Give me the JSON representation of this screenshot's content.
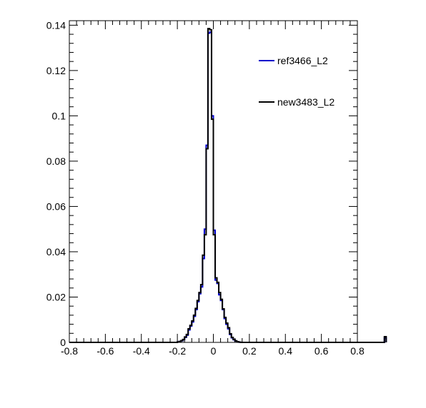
{
  "chart_data": {
    "type": "histogram",
    "title": "",
    "xlabel": "",
    "ylabel": "",
    "xlim": [
      -0.8,
      0.8
    ],
    "ylim": [
      0,
      0.142
    ],
    "x_ticks": [
      "-0.8",
      "-0.6",
      "-0.4",
      "-0.2",
      "0",
      "0.2",
      "0.4",
      "0.6",
      "0.8"
    ],
    "y_ticks": [
      "0",
      "0.02",
      "0.04",
      "0.06",
      "0.08",
      "0.1",
      "0.12",
      "0.14"
    ],
    "bin_width": 0.01,
    "bin_edges_start": -0.8,
    "legend_position": "top-right",
    "grid": false,
    "series": [
      {
        "name": "ref3466_L2",
        "color": "#0000cc",
        "values": [
          0,
          0,
          0,
          0,
          0,
          0,
          0,
          0,
          0,
          0,
          0,
          0,
          0,
          0,
          0,
          0,
          0,
          0,
          0,
          0,
          0,
          0,
          0,
          0,
          0,
          0,
          0,
          0,
          0,
          0,
          0,
          0,
          0,
          0,
          0,
          0,
          0,
          0,
          0,
          0,
          0,
          0,
          0,
          0,
          0,
          0,
          0,
          0,
          0,
          0,
          0,
          0,
          0,
          0,
          0,
          0,
          0,
          0,
          0,
          0,
          0.0002,
          0.0004,
          0.0007,
          0.0012,
          0.0022,
          0.0032,
          0.0055,
          0.0072,
          0.009,
          0.0115,
          0.0145,
          0.018,
          0.0215,
          0.0245,
          0.037,
          0.05,
          0.087,
          0.1365,
          0.137,
          0.1,
          0.0495,
          0.0275,
          0.026,
          0.021,
          0.0185,
          0.0145,
          0.0105,
          0.008,
          0.006,
          0.0035,
          0.002,
          0.0012,
          0.0006,
          0.0003,
          0.0001,
          0,
          0,
          0,
          0,
          0,
          0,
          0,
          0,
          0,
          0,
          0,
          0,
          0,
          0,
          0,
          0,
          0,
          0,
          0,
          0,
          0,
          0,
          0,
          0,
          0,
          0,
          0,
          0,
          0,
          0,
          0,
          0,
          0,
          0,
          0,
          0,
          0,
          0,
          0,
          0,
          0,
          0,
          0,
          0,
          0,
          0,
          0,
          0,
          0,
          0,
          0,
          0,
          0,
          0,
          0,
          0,
          0,
          0,
          0,
          0,
          0,
          0,
          0,
          0,
          0,
          0,
          0,
          0,
          0,
          0,
          0,
          0,
          0,
          0,
          0,
          0,
          0,
          0,
          0,
          0,
          0.002
        ]
      },
      {
        "name": "new3483_L2",
        "color": "#000000",
        "values": [
          0,
          0,
          0,
          0,
          0,
          0,
          0,
          0,
          0,
          0,
          0,
          0,
          0,
          0,
          0,
          0,
          0,
          0,
          0,
          0,
          0,
          0,
          0,
          0,
          0,
          0,
          0,
          0,
          0,
          0,
          0,
          0,
          0,
          0,
          0,
          0,
          0,
          0,
          0,
          0,
          0,
          0,
          0,
          0,
          0,
          0,
          0,
          0,
          0,
          0,
          0,
          0,
          0,
          0,
          0,
          0,
          0,
          0,
          0,
          0,
          0.0002,
          0.0004,
          0.0008,
          0.0013,
          0.0024,
          0.0035,
          0.006,
          0.0075,
          0.0095,
          0.012,
          0.015,
          0.0185,
          0.022,
          0.0255,
          0.0385,
          0.0475,
          0.0855,
          0.1385,
          0.138,
          0.0985,
          0.0475,
          0.0285,
          0.0265,
          0.022,
          0.019,
          0.0148,
          0.011,
          0.0085,
          0.0065,
          0.0038,
          0.0022,
          0.0013,
          0.0007,
          0.0003,
          0.0001,
          0,
          0,
          0,
          0,
          0,
          0,
          0,
          0,
          0,
          0,
          0,
          0,
          0,
          0,
          0,
          0,
          0,
          0,
          0,
          0,
          0,
          0,
          0,
          0,
          0,
          0,
          0,
          0,
          0,
          0,
          0,
          0,
          0,
          0,
          0,
          0,
          0,
          0,
          0,
          0,
          0,
          0,
          0,
          0,
          0,
          0,
          0,
          0,
          0,
          0,
          0,
          0,
          0,
          0,
          0,
          0,
          0,
          0,
          0,
          0,
          0,
          0,
          0,
          0,
          0,
          0,
          0,
          0,
          0,
          0,
          0,
          0,
          0,
          0,
          0,
          0,
          0,
          0,
          0,
          0,
          0.0025
        ]
      }
    ]
  }
}
